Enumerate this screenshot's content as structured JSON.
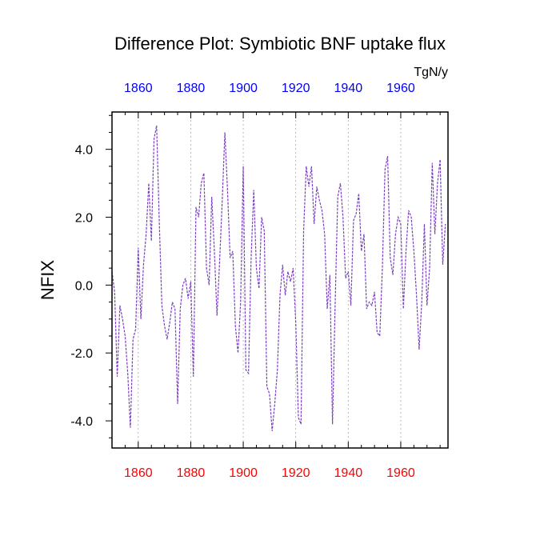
{
  "chart_data": {
    "type": "line",
    "title": "Difference Plot: Symbiotic BNF uptake flux",
    "units": "TgN/y",
    "ylabel": "NFIX",
    "xlabel": "",
    "xlim": [
      1850,
      1978
    ],
    "ylim": [
      -4.8,
      5.1
    ],
    "y_ticks": [
      -4.0,
      -2.0,
      0.0,
      2.0,
      4.0
    ],
    "y_tick_labels": [
      "-4.0",
      "-2.0",
      "0.0",
      "2.0",
      "4.0"
    ],
    "x_ticks": [
      1860,
      1880,
      1900,
      1920,
      1940,
      1960
    ],
    "x_tick_labels": [
      "1860",
      "1880",
      "1900",
      "1920",
      "1940",
      "1960"
    ],
    "grid": "vertical dotted at major x ticks",
    "colors": {
      "line": "#7a3fbf",
      "top_ticks": "#0000ff",
      "bottom_ticks": "#ff0000"
    },
    "series": [
      {
        "line_style": "dashed",
        "x": [
          1850,
          1851,
          1852,
          1853,
          1854,
          1855,
          1856,
          1857,
          1858,
          1859,
          1860,
          1861,
          1862,
          1863,
          1864,
          1865,
          1866,
          1867,
          1868,
          1869,
          1870,
          1871,
          1872,
          1873,
          1874,
          1875,
          1876,
          1877,
          1878,
          1879,
          1880,
          1881,
          1882,
          1883,
          1884,
          1885,
          1886,
          1887,
          1888,
          1889,
          1890,
          1891,
          1892,
          1893,
          1894,
          1895,
          1896,
          1897,
          1898,
          1899,
          1900,
          1901,
          1902,
          1903,
          1904,
          1905,
          1906,
          1907,
          1908,
          1909,
          1910,
          1911,
          1912,
          1913,
          1914,
          1915,
          1916,
          1917,
          1918,
          1919,
          1920,
          1921,
          1922,
          1923,
          1924,
          1925,
          1926,
          1927,
          1928,
          1929,
          1930,
          1931,
          1932,
          1933,
          1934,
          1935,
          1936,
          1937,
          1938,
          1939,
          1940,
          1941,
          1942,
          1943,
          1944,
          1945,
          1946,
          1947,
          1948,
          1949,
          1950,
          1951,
          1952,
          1953,
          1954,
          1955,
          1956,
          1957,
          1958,
          1959,
          1960,
          1961,
          1962,
          1963,
          1964,
          1965,
          1966,
          1967,
          1968,
          1969,
          1970,
          1971,
          1972,
          1973,
          1974,
          1975,
          1976,
          1977
        ],
        "y": [
          0.4,
          -0.2,
          -2.7,
          -0.6,
          -1.0,
          -1.5,
          -2.6,
          -4.2,
          -1.6,
          -1.3,
          1.1,
          -1.0,
          0.6,
          1.5,
          3.0,
          1.3,
          4.3,
          4.7,
          1.9,
          -0.6,
          -1.2,
          -1.6,
          -1.1,
          -0.5,
          -0.7,
          -3.5,
          -0.7,
          0.0,
          0.2,
          -0.4,
          0.1,
          -2.7,
          2.3,
          2.0,
          3.0,
          3.3,
          0.5,
          0.0,
          2.6,
          1.0,
          -0.9,
          0.7,
          2.5,
          4.5,
          2.8,
          0.8,
          1.0,
          -1.2,
          -2.0,
          -0.5,
          3.5,
          -2.5,
          -2.6,
          0.8,
          2.8,
          0.5,
          -0.1,
          2.0,
          1.6,
          -3.0,
          -3.2,
          -4.3,
          -3.5,
          -2.5,
          -0.3,
          0.6,
          -0.3,
          0.4,
          0.1,
          0.5,
          -1.1,
          -3.9,
          -4.1,
          1.6,
          3.5,
          2.9,
          3.5,
          1.8,
          2.9,
          2.5,
          2.2,
          1.5,
          -0.7,
          0.3,
          -4.1,
          -0.6,
          2.6,
          3.0,
          2.0,
          0.2,
          0.4,
          -0.6,
          1.9,
          2.1,
          2.7,
          1.0,
          1.5,
          -0.7,
          -0.5,
          -0.6,
          -0.2,
          -1.4,
          -1.5,
          0.5,
          3.4,
          3.8,
          0.8,
          0.3,
          1.5,
          2.0,
          1.8,
          -0.7,
          1.0,
          2.2,
          2.0,
          1.0,
          -0.3,
          -1.9,
          -0.5,
          1.8,
          -0.6,
          0.5,
          3.6,
          1.5,
          3.0,
          3.7,
          0.6,
          1.8
        ]
      }
    ]
  }
}
